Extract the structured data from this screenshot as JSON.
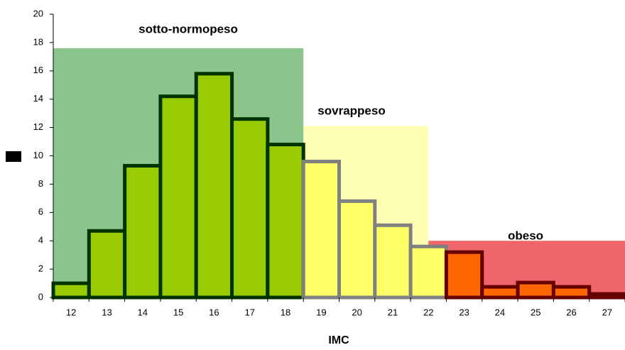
{
  "chart_data": {
    "type": "bar",
    "x_label": "IMC",
    "categories": [
      "12",
      "13",
      "14",
      "15",
      "16",
      "17",
      "18",
      "19",
      "20",
      "21",
      "22",
      "23",
      "24",
      "25",
      "26",
      "27"
    ],
    "values": [
      1,
      4.7,
      9.3,
      14.2,
      15.8,
      12.6,
      10.8,
      9.6,
      6.8,
      5.1,
      3.6,
      3.2,
      0.75,
      1.05,
      0.75,
      0.25
    ],
    "colors": [
      "#99cc00",
      "#99cc00",
      "#99cc00",
      "#99cc00",
      "#99cc00",
      "#99cc00",
      "#99cc00",
      "#ffff66",
      "#ffff66",
      "#ffff66",
      "#ffff66",
      "#ff6600",
      "#ff6600",
      "#ff6600",
      "#ff6600",
      "#ff6600"
    ],
    "edge_colors": [
      "#003300",
      "#003300",
      "#003300",
      "#003300",
      "#003300",
      "#003300",
      "#003300",
      "#808080",
      "#808080",
      "#808080",
      "#808080",
      "#660000",
      "#660000",
      "#660000",
      "#660000",
      "#660000"
    ],
    "regions": [
      {
        "label": "sotto-normopeso",
        "top": 17.6,
        "x_from": -0.5,
        "x_to": 6.5,
        "color": "#66b266"
      },
      {
        "label": "sovrappeso",
        "top": 12.1,
        "x_from": 6.5,
        "x_to": 10,
        "color": "#ffff99"
      },
      {
        "label": "obeso",
        "top": 4,
        "x_from": 10,
        "x_to": 15.5,
        "color": "#e8333a"
      }
    ],
    "ylim": [
      0,
      20
    ],
    "yticks": [
      0,
      2,
      4,
      6,
      8,
      10,
      12,
      14,
      16,
      18,
      20
    ]
  }
}
